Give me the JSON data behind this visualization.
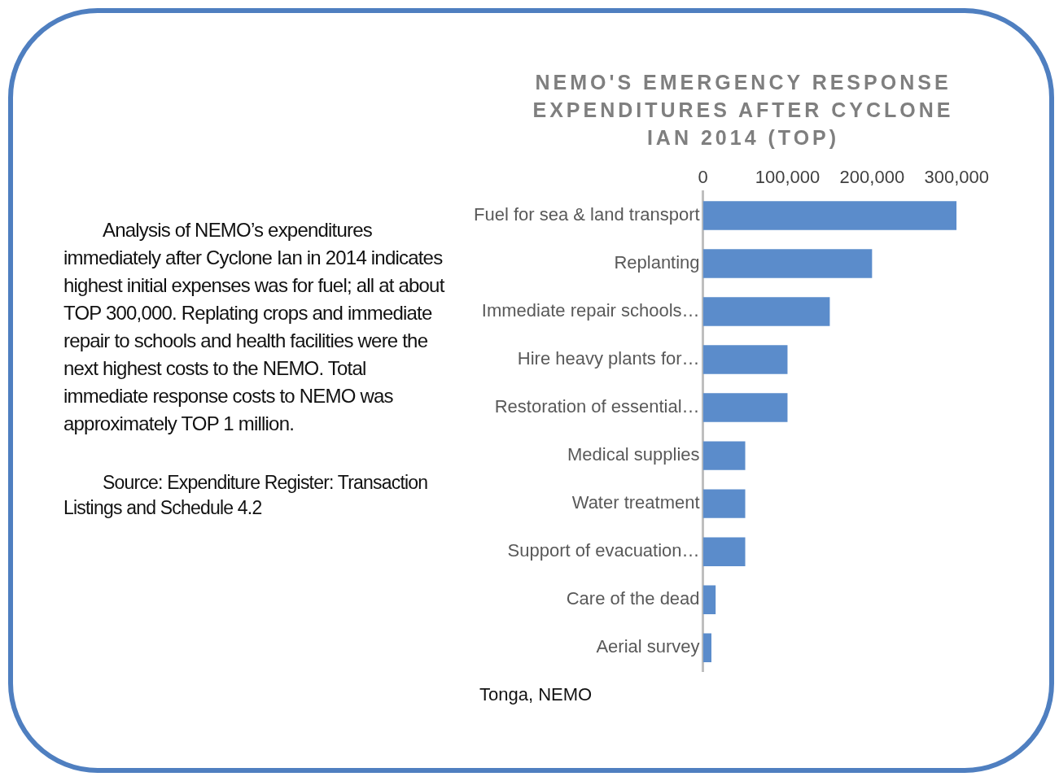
{
  "chart_data": {
    "type": "bar",
    "orientation": "horizontal",
    "title": "NEMO'S EMERGENCY RESPONSE EXPENDITURES AFTER CYCLONE IAN 2014 (TOP)",
    "categories": [
      "Fuel for sea & land transport",
      "Replanting",
      "Immediate repair schools…",
      "Hire heavy plants for…",
      "Restoration of essential…",
      "Medical supplies",
      "Water treatment",
      "Support of evacuation…",
      "Care of the dead",
      "Aerial survey"
    ],
    "values": [
      300000,
      200000,
      150000,
      100000,
      100000,
      50000,
      50000,
      50000,
      15000,
      10000
    ],
    "color": "#5b8ccb",
    "xlim": [
      0,
      300000
    ],
    "xticks": [
      {
        "value": 0,
        "label": "0"
      },
      {
        "value": 100000,
        "label": "100,000"
      },
      {
        "value": 200000,
        "label": "200,000"
      },
      {
        "value": 300000,
        "label": "300,000"
      }
    ],
    "grid": false,
    "legend": false,
    "annotations": [
      "Analysis of NEMO’s expenditures immediately after Cyclone Ian in 2014 indicates highest initial expenses was for fuel; all at about TOP 300,000. Replating crops and immediate repair to schools and health facilities were the next highest costs to the NEMO. Total immediate response costs to NEMO was approximately  TOP 1 million.",
      "Source: Expenditure Register: Transaction Listings and Schedule 4.2",
      "Tonga, NEMO"
    ]
  }
}
